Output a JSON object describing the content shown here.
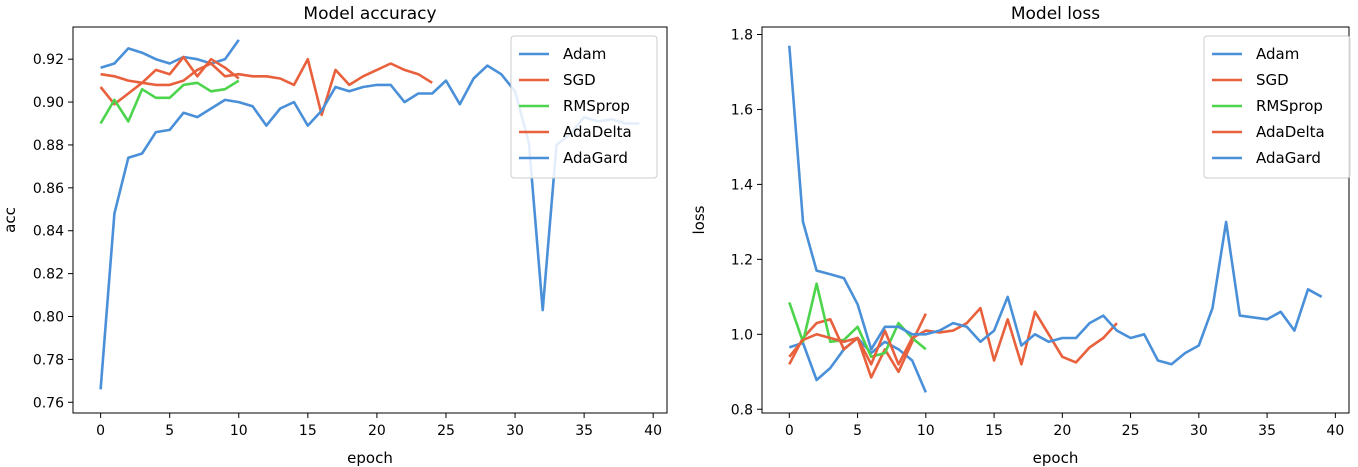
{
  "chart_data": [
    {
      "type": "line",
      "title": "Model accuracy",
      "xlabel": "epoch",
      "ylabel": "acc",
      "xlim": [
        -2,
        41
      ],
      "ylim": [
        0.755,
        0.935
      ],
      "xticks": [
        0,
        5,
        10,
        15,
        20,
        25,
        30,
        35,
        40
      ],
      "yticks": [
        0.76,
        0.78,
        0.8,
        0.82,
        0.84,
        0.86,
        0.88,
        0.9,
        0.92
      ],
      "ytick_labels": [
        "0.76",
        "0.78",
        "0.80",
        "0.82",
        "0.84",
        "0.86",
        "0.88",
        "0.90",
        "0.92"
      ],
      "legend_position": "top-right",
      "series": [
        {
          "name": "Adam",
          "color": "#4a90d9",
          "x": [
            0,
            1,
            2,
            3,
            4,
            5,
            6,
            7,
            8,
            9,
            10
          ],
          "y": [
            0.916,
            0.918,
            0.925,
            0.923,
            0.92,
            0.918,
            0.921,
            0.92,
            0.918,
            0.92,
            0.929
          ]
        },
        {
          "name": "SGD",
          "color": "#e8603c",
          "x": [
            0,
            1,
            2,
            3,
            4,
            5,
            6,
            7,
            8,
            9,
            10
          ],
          "y": [
            0.907,
            0.899,
            0.904,
            0.909,
            0.915,
            0.913,
            0.921,
            0.912,
            0.92,
            0.916,
            0.911
          ]
        },
        {
          "name": "RMSprop",
          "color": "#4cd44c",
          "x": [
            0,
            1,
            2,
            3,
            4,
            5,
            6,
            7,
            8,
            9,
            10
          ],
          "y": [
            0.89,
            0.901,
            0.891,
            0.906,
            0.902,
            0.902,
            0.908,
            0.909,
            0.905,
            0.906,
            0.91
          ]
        },
        {
          "name": "AdaDelta",
          "color": "#e8603c",
          "x": [
            0,
            1,
            2,
            3,
            4,
            5,
            6,
            7,
            8,
            9,
            10,
            11,
            12,
            13,
            14,
            15,
            16,
            17,
            18,
            19,
            20,
            21,
            22,
            23,
            24
          ],
          "y": [
            0.913,
            0.912,
            0.91,
            0.909,
            0.908,
            0.908,
            0.91,
            0.915,
            0.918,
            0.912,
            0.913,
            0.912,
            0.912,
            0.911,
            0.908,
            0.92,
            0.894,
            0.915,
            0.908,
            0.912,
            0.915,
            0.918,
            0.915,
            0.913,
            0.909
          ]
        },
        {
          "name": "AdaGard",
          "color": "#4a90d9",
          "x": [
            0,
            1,
            2,
            3,
            4,
            5,
            6,
            7,
            8,
            9,
            10,
            11,
            12,
            13,
            14,
            15,
            16,
            17,
            18,
            19,
            20,
            21,
            22,
            23,
            24,
            25,
            26,
            27,
            28,
            29,
            30,
            31,
            32,
            33,
            34,
            35,
            36,
            37,
            38,
            39
          ],
          "y": [
            0.766,
            0.848,
            0.874,
            0.876,
            0.886,
            0.887,
            0.895,
            0.893,
            0.897,
            0.901,
            0.9,
            0.898,
            0.889,
            0.897,
            0.9,
            0.889,
            0.896,
            0.907,
            0.905,
            0.907,
            0.908,
            0.908,
            0.9,
            0.904,
            0.904,
            0.91,
            0.899,
            0.911,
            0.917,
            0.913,
            0.905,
            0.881,
            0.803,
            0.88,
            0.885,
            0.893,
            0.891,
            0.892,
            0.89,
            0.89
          ]
        }
      ]
    },
    {
      "type": "line",
      "title": "Model loss",
      "xlabel": "epoch",
      "ylabel": "loss",
      "xlim": [
        -2,
        41
      ],
      "ylim": [
        0.79,
        1.82
      ],
      "xticks": [
        0,
        5,
        10,
        15,
        20,
        25,
        30,
        35,
        40
      ],
      "yticks": [
        0.8,
        1.0,
        1.2,
        1.4,
        1.6,
        1.8
      ],
      "ytick_labels": [
        "0.8",
        "1.0",
        "1.2",
        "1.4",
        "1.6",
        "1.8"
      ],
      "legend_position": "top-right",
      "series": [
        {
          "name": "Adam",
          "color": "#4a90d9",
          "x": [
            0,
            1,
            2,
            3,
            4,
            5,
            6,
            7,
            8,
            9,
            10
          ],
          "y": [
            0.965,
            0.977,
            0.878,
            0.91,
            0.96,
            0.99,
            0.95,
            0.98,
            0.96,
            0.93,
            0.845
          ]
        },
        {
          "name": "SGD",
          "color": "#e8603c",
          "x": [
            0,
            1,
            2,
            3,
            4,
            5,
            6,
            7,
            8,
            9,
            10
          ],
          "y": [
            0.92,
            0.99,
            1.03,
            1.04,
            0.96,
            0.99,
            0.885,
            0.96,
            0.9,
            0.98,
            1.055
          ]
        },
        {
          "name": "RMSprop",
          "color": "#4cd44c",
          "x": [
            0,
            1,
            2,
            3,
            4,
            5,
            6,
            7,
            8,
            9,
            10
          ],
          "y": [
            1.085,
            0.98,
            1.135,
            0.98,
            0.985,
            1.02,
            0.94,
            0.95,
            1.03,
            0.99,
            0.96
          ]
        },
        {
          "name": "AdaDelta",
          "color": "#e8603c",
          "x": [
            0,
            1,
            2,
            3,
            4,
            5,
            6,
            7,
            8,
            9,
            10,
            11,
            12,
            13,
            14,
            15,
            16,
            17,
            18,
            19,
            20,
            21,
            22,
            23,
            24
          ],
          "y": [
            0.94,
            0.985,
            1.0,
            0.99,
            0.98,
            0.99,
            0.92,
            1.01,
            0.92,
            0.99,
            1.01,
            1.005,
            1.01,
            1.03,
            1.07,
            0.93,
            1.04,
            0.92,
            1.06,
            1.0,
            0.94,
            0.925,
            0.965,
            0.99,
            1.03
          ]
        },
        {
          "name": "AdaGard",
          "color": "#4a90d9",
          "x": [
            0,
            1,
            2,
            3,
            4,
            5,
            6,
            7,
            8,
            9,
            10,
            11,
            12,
            13,
            14,
            15,
            16,
            17,
            18,
            19,
            20,
            21,
            22,
            23,
            24,
            25,
            26,
            27,
            28,
            29,
            30,
            31,
            32,
            33,
            34,
            35,
            36,
            37,
            38,
            39
          ],
          "y": [
            1.77,
            1.3,
            1.17,
            1.16,
            1.15,
            1.08,
            0.96,
            1.02,
            1.02,
            1.0,
            1.0,
            1.01,
            1.03,
            1.02,
            0.98,
            1.01,
            1.1,
            0.97,
            1.0,
            0.98,
            0.99,
            0.99,
            1.03,
            1.05,
            1.01,
            0.99,
            1.0,
            0.93,
            0.92,
            0.95,
            0.97,
            1.07,
            1.3,
            1.05,
            1.045,
            1.04,
            1.06,
            1.01,
            1.12,
            1.1
          ]
        }
      ]
    }
  ]
}
